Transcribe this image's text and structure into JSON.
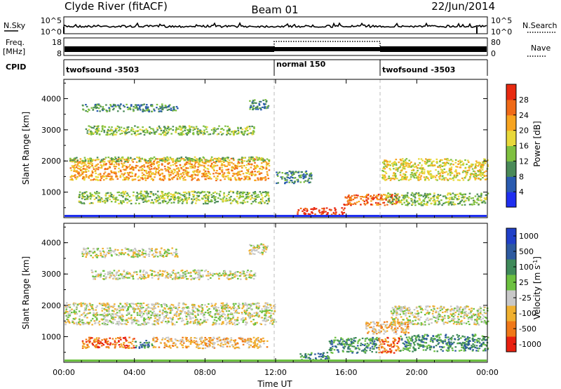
{
  "header": {
    "title": "Clyde River (fitACF)",
    "beam": "Beam 01",
    "date": "22/Jun/2014"
  },
  "top_panels": {
    "nsky_label": "N.Sky",
    "nsky_ticks": [
      "10^5",
      "10^0"
    ],
    "nsearch_label": "N.Search",
    "nsearch_ticks": [
      "10^5",
      "10^0"
    ],
    "freq_label": "Freq.",
    "freq_unit": "[MHz]",
    "freq_ticks": [
      "18",
      "8"
    ],
    "nave_label": "Nave",
    "nave_ticks": [
      "80",
      "0"
    ],
    "cpid_label": "CPID",
    "cpid_segments": [
      {
        "name": "twofsound -3503",
        "start_h": 0,
        "end_h": 12
      },
      {
        "name": "normal 150",
        "start_h": 12,
        "end_h": 18
      },
      {
        "name": "twofsound -3503",
        "start_h": 18,
        "end_h": 24
      }
    ]
  },
  "chart_data": [
    {
      "type": "heatmap",
      "title": "",
      "xlabel": "",
      "ylabel": "Slant Range [km]",
      "x_range_hours": [
        0,
        24
      ],
      "ylim": [
        180,
        4620
      ],
      "yticks": [
        "1000",
        "2000",
        "3000",
        "4000"
      ],
      "colorbar": {
        "label": "Power [dB]",
        "ticks": [
          "4",
          "8",
          "12",
          "16",
          "20",
          "24",
          "28"
        ],
        "colors": [
          "#1f2ff0",
          "#2a5bb0",
          "#4a8a58",
          "#7fc040",
          "#e8d83a",
          "#f7a420",
          "#f06a18",
          "#e82a10"
        ]
      },
      "scatter_bands": [
        {
          "start_h": 0.3,
          "end_h": 11.6,
          "range_km": [
            1400,
            2100
          ],
          "level": 5
        },
        {
          "start_h": 0.3,
          "end_h": 11.6,
          "range_km": [
            2000,
            2150
          ],
          "level": 3
        },
        {
          "start_h": 1.2,
          "end_h": 10.8,
          "range_km": [
            2850,
            3150
          ],
          "level": 3
        },
        {
          "start_h": 1.0,
          "end_h": 6.4,
          "range_km": [
            3600,
            3850
          ],
          "level": 2
        },
        {
          "start_h": 10.4,
          "end_h": 11.6,
          "range_km": [
            3650,
            4000
          ],
          "level": 2
        },
        {
          "start_h": 0.8,
          "end_h": 11.6,
          "range_km": [
            650,
            1050
          ],
          "level": 3
        },
        {
          "start_h": 13.2,
          "end_h": 15.9,
          "range_km": [
            300,
            520
          ],
          "level": 7
        },
        {
          "start_h": 15.8,
          "end_h": 19.0,
          "range_km": [
            600,
            950
          ],
          "level": 6
        },
        {
          "start_h": 12.0,
          "end_h": 14.0,
          "range_km": [
            1300,
            1700
          ],
          "level": 2
        },
        {
          "start_h": 18.0,
          "end_h": 24.0,
          "range_km": [
            1400,
            2100
          ],
          "level": 4
        },
        {
          "start_h": 18.2,
          "end_h": 24.0,
          "range_km": [
            600,
            1000
          ],
          "level": 3
        }
      ]
    },
    {
      "type": "heatmap",
      "title": "",
      "xlabel": "Time UT",
      "ylabel": "Slant Range [km]",
      "x_range_hours": [
        0,
        24
      ],
      "ylim": [
        180,
        4620
      ],
      "yticks": [
        "1000",
        "2000",
        "3000",
        "4000"
      ],
      "xticks": [
        "00:00",
        "04:00",
        "08:00",
        "12:00",
        "16:00",
        "20:00",
        "00:00"
      ],
      "colorbar": {
        "label": "Velocity",
        "unit": "[m s",
        "unit_exp": "-1",
        "unit_close": "]",
        "ticks": [
          "1000",
          "500",
          "100",
          "25",
          "-25",
          "-100",
          "-500",
          "-1000"
        ],
        "colors": [
          "#2040c8",
          "#2d5aa0",
          "#3f8a5a",
          "#6cc040",
          "#c8c8c8",
          "#f0b030",
          "#f07818",
          "#e82010"
        ]
      },
      "scatter_bands": [
        {
          "start_h": 0.0,
          "end_h": 12.0,
          "range_km": [
            1400,
            2100
          ],
          "level": 4
        },
        {
          "start_h": 1.5,
          "end_h": 10.8,
          "range_km": [
            2850,
            3150
          ],
          "level": 4
        },
        {
          "start_h": 1.0,
          "end_h": 6.4,
          "range_km": [
            3550,
            3850
          ],
          "level": 4
        },
        {
          "start_h": 10.4,
          "end_h": 11.6,
          "range_km": [
            3650,
            4000
          ],
          "level": 4
        },
        {
          "start_h": 1.0,
          "end_h": 4.0,
          "range_km": [
            650,
            1000
          ],
          "level": 6
        },
        {
          "start_h": 4.0,
          "end_h": 5.0,
          "range_km": [
            650,
            900
          ],
          "level": 2
        },
        {
          "start_h": 5.0,
          "end_h": 11.5,
          "range_km": [
            650,
            1000
          ],
          "level": 5
        },
        {
          "start_h": 13.3,
          "end_h": 15.0,
          "range_km": [
            280,
            520
          ],
          "level": 2
        },
        {
          "start_h": 15.0,
          "end_h": 17.8,
          "range_km": [
            500,
            1000
          ],
          "level": 2
        },
        {
          "start_h": 17.8,
          "end_h": 19.0,
          "range_km": [
            500,
            1000
          ],
          "level": 6
        },
        {
          "start_h": 19.0,
          "end_h": 24.0,
          "range_km": [
            550,
            1100
          ],
          "level": 2
        },
        {
          "start_h": 18.5,
          "end_h": 24.0,
          "range_km": [
            1400,
            2000
          ],
          "level": 4
        },
        {
          "start_h": 17.0,
          "end_h": 19.5,
          "range_km": [
            1100,
            1500
          ],
          "level": 5
        }
      ]
    }
  ]
}
